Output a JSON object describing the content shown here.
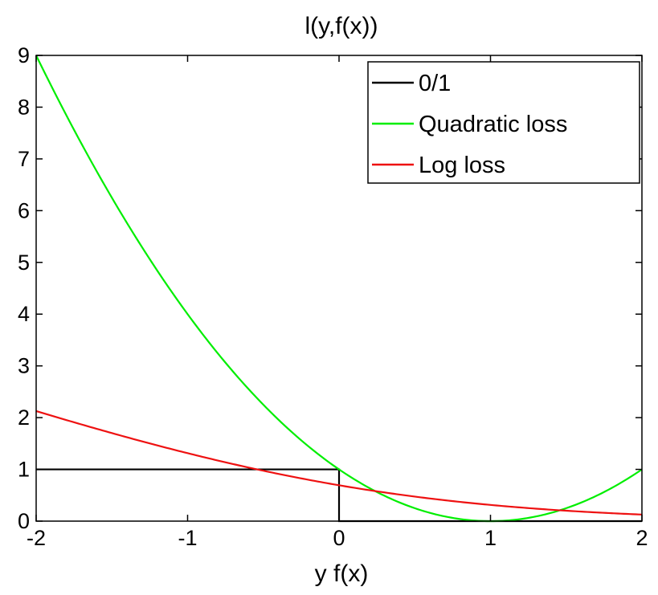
{
  "chart_data": {
    "type": "line",
    "title": "l(y,f(x))",
    "xlabel": "y f(x)",
    "ylabel": "",
    "xlim": [
      -2,
      2
    ],
    "ylim": [
      0,
      9
    ],
    "grid": false,
    "legend_position": "top-right",
    "x_ticks": [
      -2,
      -1,
      0,
      1,
      2
    ],
    "x_tick_labels": [
      "-2",
      "-1",
      "0",
      "1",
      "2"
    ],
    "y_ticks": [
      0,
      1,
      2,
      3,
      4,
      5,
      6,
      7,
      8,
      9
    ],
    "y_tick_labels": [
      "0",
      "1",
      "2",
      "3",
      "4",
      "5",
      "6",
      "7",
      "8",
      "9"
    ],
    "series": [
      {
        "name": "0/1",
        "color": "#000000",
        "x": [
          -2,
          0,
          0,
          2
        ],
        "y": [
          1,
          1,
          0,
          0
        ]
      },
      {
        "name": "Quadratic loss",
        "color": "#00ee00",
        "x": [
          -2,
          -1.75,
          -1.5,
          -1.25,
          -1,
          -0.75,
          -0.5,
          -0.25,
          0,
          0.25,
          0.5,
          0.75,
          1,
          1.25,
          1.5,
          1.75,
          2
        ],
        "y": [
          9,
          7.5625,
          6.25,
          5.0625,
          4,
          3.0625,
          2.25,
          1.5625,
          1,
          0.5625,
          0.25,
          0.0625,
          0,
          0.0625,
          0.25,
          0.5625,
          1
        ]
      },
      {
        "name": "Log loss",
        "color": "#ee1111",
        "x": [
          -2,
          -1.75,
          -1.5,
          -1.25,
          -1,
          -0.75,
          -0.5,
          -0.25,
          0,
          0.25,
          0.5,
          0.75,
          1,
          1.25,
          1.5,
          1.75,
          2
        ],
        "y": [
          2.127,
          1.907,
          1.701,
          1.51,
          1.313,
          1.131,
          0.974,
          0.826,
          0.693,
          0.576,
          0.474,
          0.386,
          0.313,
          0.252,
          0.201,
          0.16,
          0.127
        ]
      }
    ]
  }
}
